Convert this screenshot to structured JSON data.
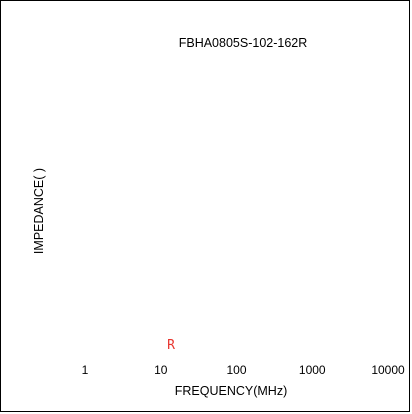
{
  "chart_data": {
    "type": "line",
    "title": "FBHA0805S-102-162R",
    "xlabel": "FREQUENCY(MHz)",
    "ylabel": "IMPEDANCE( )",
    "x_scale": "log",
    "xlim": [
      1,
      10000
    ],
    "x_ticks": [
      1,
      10,
      100,
      1000,
      10000
    ],
    "x_tick_labels": [
      "1",
      "10",
      "100",
      "1000",
      "10000"
    ],
    "grid": false,
    "series": [
      {
        "name": "R",
        "color": "#e8352e",
        "x": [],
        "y": []
      }
    ]
  }
}
